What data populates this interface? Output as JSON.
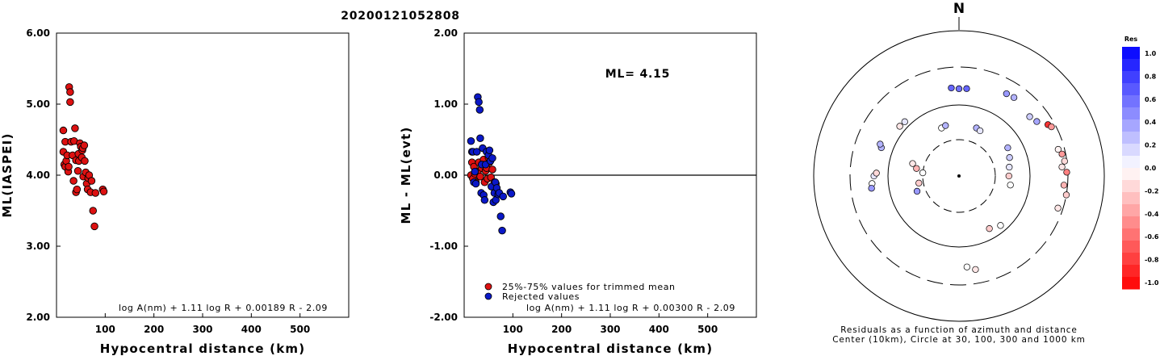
{
  "title": "20200121052808",
  "chart_data": [
    {
      "type": "scatter",
      "xlabel": "Hypocentral distance (km)",
      "ylabel": "ML(IASPEI)",
      "xlim": [
        0,
        600
      ],
      "ylim": [
        2.0,
        6.0
      ],
      "xticks": [
        "100",
        "200",
        "300",
        "400",
        "500"
      ],
      "yticks": [
        "2.00",
        "3.00",
        "4.00",
        "5.00",
        "6.00"
      ],
      "formula": "log A(nm) + 1.11 log R + 0.00189 R - 2.09",
      "series": [
        {
          "color": "#dd1111",
          "x": [
            14,
            14,
            16,
            18,
            18,
            20,
            22,
            24,
            25,
            26,
            28,
            28,
            30,
            33,
            35,
            36,
            38,
            40,
            40,
            42,
            44,
            45,
            46,
            48,
            50,
            52,
            53,
            54,
            55,
            57,
            58,
            60,
            62,
            64,
            65,
            67,
            70,
            72,
            75,
            78,
            80,
            95,
            97
          ],
          "y": [
            4.63,
            4.33,
            4.15,
            4.12,
            4.47,
            4.2,
            4.28,
            4.05,
            4.12,
            5.24,
            5.17,
            5.03,
            4.47,
            4.28,
            3.92,
            4.48,
            4.66,
            4.21,
            3.76,
            3.8,
            4.06,
            4.3,
            4.2,
            4.45,
            4.4,
            4.25,
            4.35,
            4.38,
            3.98,
            4.42,
            4.2,
            4.04,
            3.88,
            3.8,
            3.96,
            4.0,
            3.76,
            3.92,
            3.5,
            3.28,
            3.75,
            3.8,
            3.77
          ]
        }
      ]
    },
    {
      "type": "scatter",
      "xlabel": "Hypocentral distance (km)",
      "ylabel": "ML - ML(evt)",
      "xlim": [
        0,
        600
      ],
      "ylim": [
        -2.0,
        2.0
      ],
      "xticks": [
        "100",
        "200",
        "300",
        "400",
        "500"
      ],
      "yticks": [
        "-2.00",
        "-1.00",
        "0.00",
        "1.00",
        "2.00"
      ],
      "annotation": "ML= 4.15",
      "formula": "log A(nm) + 1.11 log R + 0.00300 R - 2.09",
      "legend": [
        "25%-75% values for trimmed mean",
        "Rejected values"
      ],
      "series": [
        {
          "name": "25%-75% values for trimmed mean",
          "color": "#dd1111",
          "x": [
            14,
            16,
            18,
            20,
            22,
            24,
            28,
            30,
            33,
            36,
            40,
            42,
            44,
            46,
            48,
            50,
            52,
            55,
            58,
            62,
            65
          ],
          "y": [
            0.0,
            0.18,
            -0.05,
            0.12,
            0.02,
            -0.1,
            0.05,
            0.18,
            -0.02,
            0.1,
            0.22,
            -0.1,
            0.06,
            0.1,
            -0.05,
            0.25,
            0.18,
            -0.03,
            0.08,
            -0.1,
            -0.12
          ]
        },
        {
          "name": "Rejected values",
          "color": "#0a18c8",
          "x": [
            14,
            16,
            18,
            20,
            22,
            24,
            26,
            28,
            30,
            32,
            33,
            35,
            36,
            38,
            40,
            42,
            44,
            46,
            50,
            52,
            54,
            56,
            58,
            60,
            62,
            64,
            65,
            67,
            70,
            72,
            75,
            78,
            80,
            95,
            97
          ],
          "y": [
            0.48,
            0.33,
            0.33,
            -0.1,
            0.05,
            -0.12,
            0.33,
            1.1,
            1.03,
            0.92,
            0.52,
            -0.25,
            0.15,
            0.38,
            -0.28,
            -0.35,
            0.15,
            0.33,
            0.28,
            0.35,
            0.2,
            -0.16,
            0.24,
            -0.38,
            -0.25,
            -0.1,
            -0.35,
            -0.18,
            -0.27,
            -0.25,
            -0.58,
            -0.78,
            -0.3,
            -0.24,
            -0.26
          ]
        }
      ]
    },
    {
      "type": "polar-scatter",
      "north_label": "N",
      "rings_km": [
        30,
        100,
        300,
        1000
      ],
      "caption_line1": "Residuals as a function of azimuth and distance",
      "caption_line2": "Center (10km), Circle at 30, 100, 300 and 1000 km",
      "colorbar_title": "Res",
      "colorbar_labels": [
        "1.0",
        "0.8",
        "0.6",
        "0.4",
        "0.2",
        "0.0",
        "-0.2",
        "-0.4",
        "-0.6",
        "-0.8",
        "-1.0"
      ],
      "points": [
        {
          "az": 340,
          "dist": 50,
          "res": 0.0
        },
        {
          "az": 345,
          "dist": 52,
          "res": 0.3
        },
        {
          "az": 20,
          "dist": 50,
          "res": 0.3
        },
        {
          "az": 25,
          "dist": 48,
          "res": 0.1
        },
        {
          "az": 310,
          "dist": 120,
          "res": -0.1
        },
        {
          "az": 315,
          "dist": 118,
          "res": 0.1
        },
        {
          "az": 290,
          "dist": 140,
          "res": 0.3
        },
        {
          "az": 292,
          "dist": 150,
          "res": 0.3
        },
        {
          "az": 270,
          "dist": 150,
          "res": 0.1
        },
        {
          "az": 272,
          "dist": 140,
          "res": -0.15
        },
        {
          "az": 265,
          "dist": 160,
          "res": 0.0
        },
        {
          "az": 262,
          "dist": 165,
          "res": 0.4
        },
        {
          "az": 0,
          "dist": 160,
          "res": 0.55
        },
        {
          "az": 355,
          "dist": 165,
          "res": 0.6
        },
        {
          "az": 5,
          "dist": 162,
          "res": 0.6
        },
        {
          "az": 30,
          "dist": 200,
          "res": 0.4
        },
        {
          "az": 35,
          "dist": 205,
          "res": 0.3
        },
        {
          "az": 50,
          "dist": 185,
          "res": 0.2
        },
        {
          "az": 55,
          "dist": 200,
          "res": 0.35
        },
        {
          "az": 60,
          "dist": 250,
          "res": -0.8
        },
        {
          "az": 62,
          "dist": 265,
          "res": -0.4
        },
        {
          "az": 75,
          "dist": 250,
          "res": -0.05
        },
        {
          "az": 78,
          "dist": 270,
          "res": -0.4
        },
        {
          "az": 82,
          "dist": 280,
          "res": -0.15
        },
        {
          "az": 85,
          "dist": 255,
          "res": -0.1
        },
        {
          "az": 88,
          "dist": 290,
          "res": -0.5
        },
        {
          "az": 95,
          "dist": 270,
          "res": -0.3
        },
        {
          "az": 100,
          "dist": 300,
          "res": -0.2
        },
        {
          "az": 108,
          "dist": 260,
          "res": -0.1
        },
        {
          "az": 140,
          "dist": 80,
          "res": 0.0
        },
        {
          "az": 150,
          "dist": 70,
          "res": -0.2
        },
        {
          "az": 60,
          "dist": 60,
          "res": 0.3
        },
        {
          "az": 70,
          "dist": 55,
          "res": 0.2
        },
        {
          "az": 80,
          "dist": 50,
          "res": 0.1
        },
        {
          "az": 90,
          "dist": 48,
          "res": -0.2
        },
        {
          "az": 100,
          "dist": 52,
          "res": 0.0
        },
        {
          "az": 170,
          "dist": 200,
          "res": -0.1
        },
        {
          "az": 175,
          "dist": 180,
          "res": 0.0
        },
        {
          "az": 250,
          "dist": 40,
          "res": 0.4
        },
        {
          "az": 260,
          "dist": 35,
          "res": -0.2
        },
        {
          "az": 275,
          "dist": 30,
          "res": 0.0
        },
        {
          "az": 280,
          "dist": 38,
          "res": -0.3
        },
        {
          "az": 285,
          "dist": 45,
          "res": -0.1
        }
      ]
    }
  ]
}
